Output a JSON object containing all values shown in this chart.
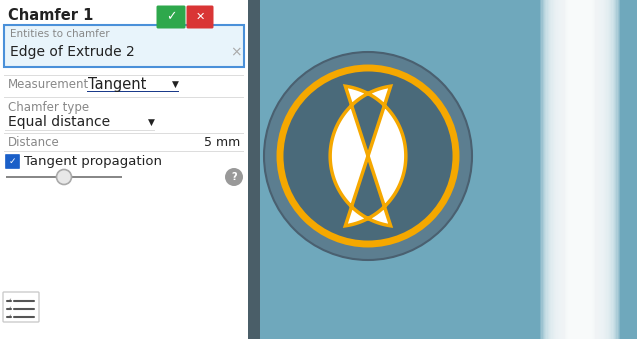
{
  "title": "Chamfer 1",
  "panel_bg": "#ffffff",
  "right_bg": "#6fa8bc",
  "entities_box_bg": "#e8f4fb",
  "entities_box_border": "#4a90d9",
  "entities_label": "Entities to chamfer",
  "entities_value": "Edge of Extrude 2",
  "measurement_label": "Measurement",
  "measurement_value": "Tangent",
  "measurement_underline": "#1a3a8a",
  "chamfer_type_label": "Chamfer type",
  "chamfer_type_value": "Equal distance",
  "distance_label": "Distance",
  "distance_value": "5 mm",
  "tangent_prop_label": "Tangent propagation",
  "orange_circle_color": "#f5a800",
  "divider_color": "#dddddd",
  "text_color": "#222222",
  "label_color": "#888888",
  "green_btn": "#2ea84c",
  "red_btn": "#d93535",
  "blue_check": "#1a5fc8",
  "panel_right_border": "#5a6e78",
  "outer_ring_fill": "#5c7e90",
  "outer_ring_edge": "#4a6070",
  "inner_fill": "#4a6a7a",
  "inner_edge": "#3a5a6a"
}
